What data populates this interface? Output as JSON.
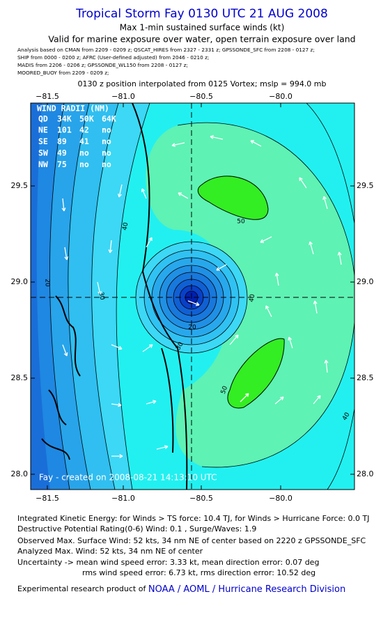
{
  "header": {
    "title": "Tropical Storm Fay 0130 UTC 21 AUG 2008",
    "subtitle": "Max 1-min sustained surface winds (kt)",
    "validity": "Valid for marine exposure over water, open terrain exposure over land",
    "analysis_lines": [
      "Analysis based on   CMAN from  2209 - 0209 z;   QSCAT_HIRES from  2327 - 2331 z;   GPSSONDE_SFC from  2208 - 0127 z;",
      "SHIP from  0000 - 0200 z;   AFRC  (User-defined adjusted)  from  2046 - 0210 z;",
      "MADIS from  2206 - 0206 z;   GPSSONDE_WL150 from  2208 - 0127 z;",
      "MOORED_BUOY from  2209 - 0209 z;"
    ],
    "position_note": "0130 z position interpolated from 0125 Vortex; mslp = 994.0 mb"
  },
  "map": {
    "lon_ticks": [
      "−81.5",
      "−81.0",
      "−80.5",
      "−80.0"
    ],
    "lat_ticks": [
      "29.5",
      "29.0",
      "28.5",
      "28.0"
    ],
    "contour_labels": [
      "40",
      "50",
      "30",
      "20",
      "40",
      "20",
      "30",
      "50",
      "40"
    ],
    "wind_radii": {
      "title": "WIND RADII (NM)",
      "header": [
        "QD",
        "34K",
        "50K",
        "64K"
      ],
      "rows": [
        [
          "NE",
          "101",
          "42",
          "no"
        ],
        [
          "SE",
          "89",
          "41",
          "no"
        ],
        [
          "SW",
          "49",
          "no",
          "no"
        ],
        [
          "NW",
          "75",
          "no",
          "no"
        ]
      ]
    },
    "credit": "Fay - created on 2008-08-21 14:13:10 UTC"
  },
  "footer": {
    "ike": "Integrated Kinetic Energy:  for Winds > TS force: 10.4 TJ,  for Winds > Hurricane Force: 0.0 TJ",
    "dpr": "Destructive Potential Rating(0-6)   Wind: 0.1 , Surge/Waves: 1.9",
    "observed": "Observed Max. Surface Wind: 52 kts, 34 nm NE of center based on 2220 z GPSSONDE_SFC",
    "analyzed": "Analyzed Max. Wind: 52 kts, 34 nm NE of center",
    "uncertainty1": "Uncertainty -> mean wind speed error: 3.33 kt,   mean direction error: 0.07 deg",
    "uncertainty2": "rms wind speed error: 6.73 kt,   rms direction error: 10.52 deg",
    "product_prefix": "Experimental research product of",
    "product_link": "NOAA / AOML / Hurricane Research Division"
  }
}
